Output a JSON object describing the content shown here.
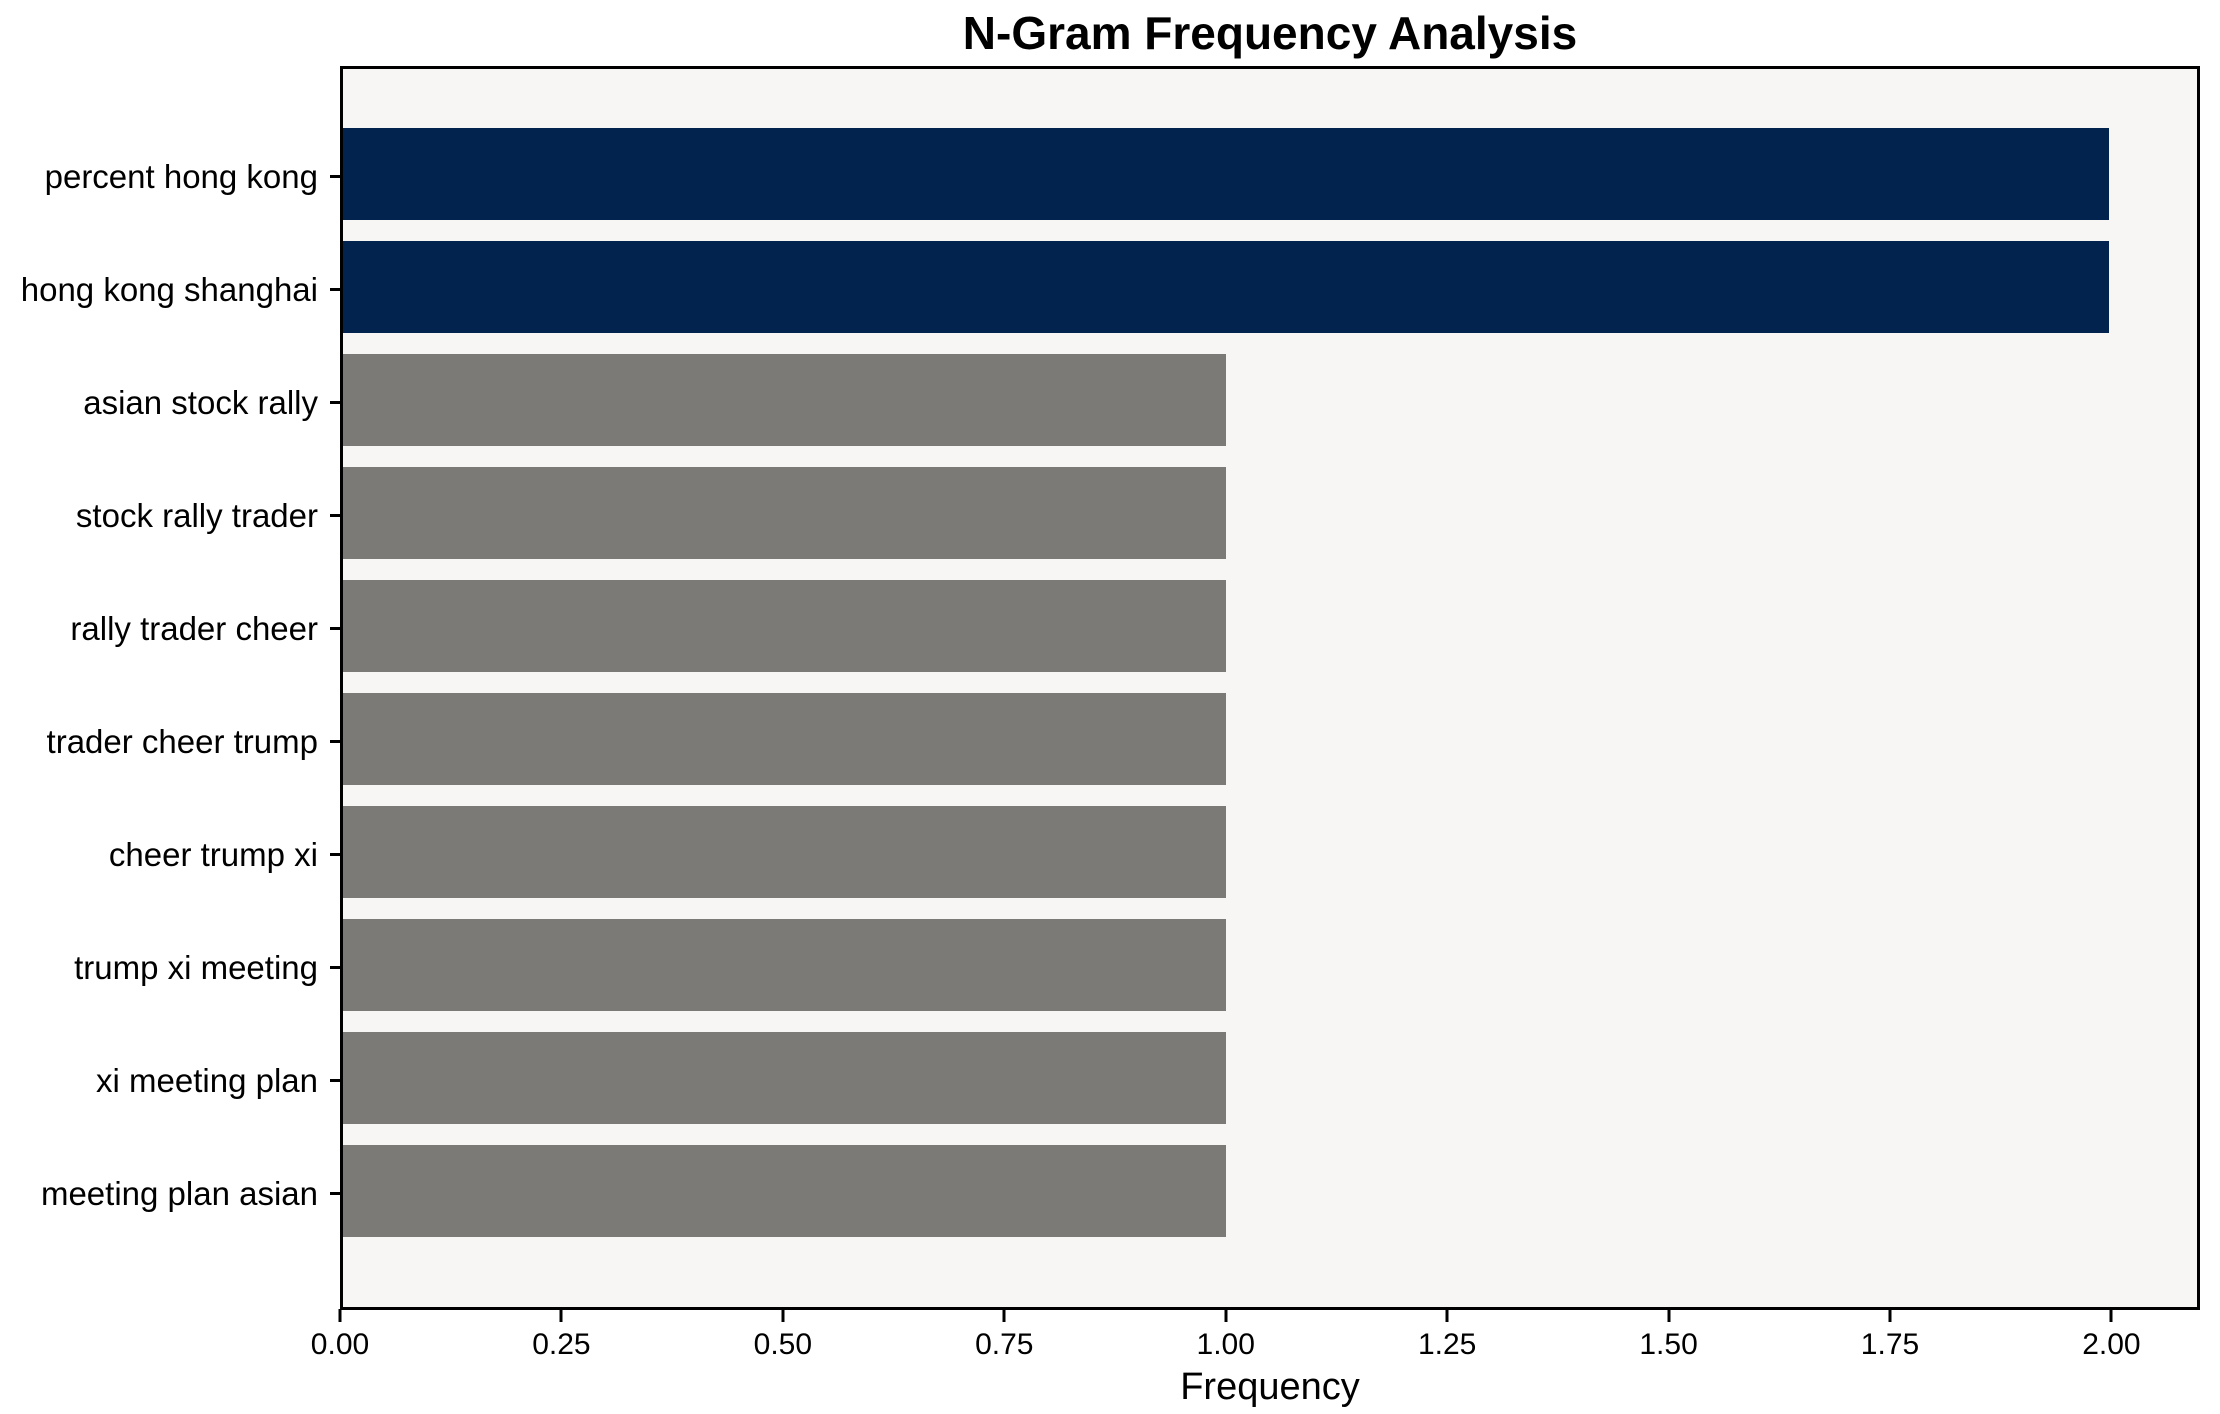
{
  "chart_data": {
    "type": "bar",
    "orientation": "horizontal",
    "title": "N-Gram Frequency Analysis",
    "xlabel": "Frequency",
    "ylabel": "",
    "categories": [
      "percent hong kong",
      "hong kong shanghai",
      "asian stock rally",
      "stock rally trader",
      "rally trader cheer",
      "trader cheer trump",
      "cheer trump xi",
      "trump xi meeting",
      "xi meeting plan",
      "meeting plan asian"
    ],
    "values": [
      2,
      2,
      1,
      1,
      1,
      1,
      1,
      1,
      1,
      1
    ],
    "bar_colors": [
      "#02234d",
      "#02234d",
      "#7b7a77",
      "#7b7a77",
      "#7b7a77",
      "#7b7a77",
      "#7b7a77",
      "#7b7a77",
      "#7b7a77",
      "#7b7a77"
    ],
    "xticks": [
      0.0,
      0.25,
      0.5,
      0.75,
      1.0,
      1.25,
      1.5,
      1.75,
      2.0
    ],
    "xtick_labels": [
      "0.00",
      "0.25",
      "0.50",
      "0.75",
      "1.00",
      "1.25",
      "1.50",
      "1.75",
      "2.00"
    ],
    "xlim": [
      0,
      2.1
    ],
    "grid": false,
    "legend": false,
    "plot_background": "#f7f6f5",
    "figure_background": "#ffffff",
    "spine_color": "#000000",
    "text_color": "#000000"
  }
}
